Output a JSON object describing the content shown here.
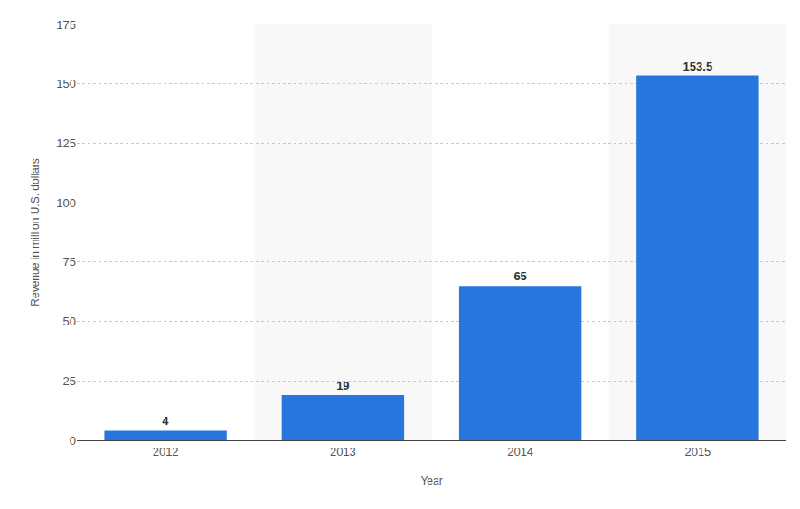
{
  "chart_data": {
    "type": "bar",
    "categories": [
      "2012",
      "2013",
      "2014",
      "2015"
    ],
    "values": [
      4,
      19,
      65,
      153.5
    ],
    "color": "#2876dd",
    "x_label": "Year",
    "y_label": "Revenue in million U.S. dollars",
    "ylim": [
      0,
      175
    ],
    "yticks": [
      0,
      25,
      50,
      75,
      100,
      125,
      150,
      175
    ],
    "grid": true,
    "data_labels": true
  }
}
